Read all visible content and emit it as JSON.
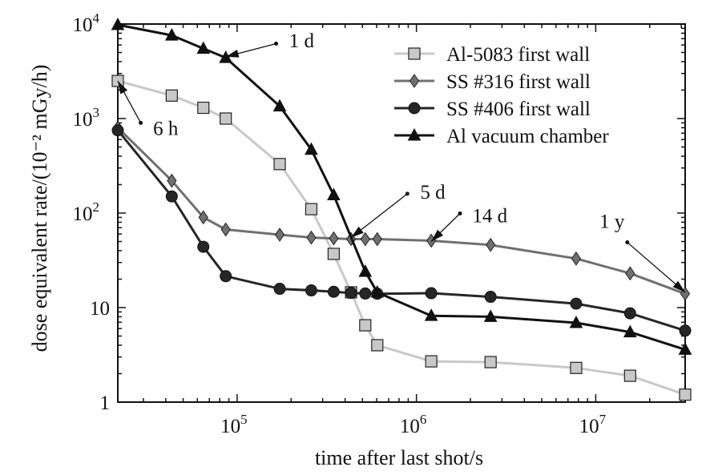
{
  "chart_data": {
    "type": "line",
    "title": "",
    "xlabel": "time after last shot/s",
    "ylabel": "dose equivalent rate/(10⁻² mGy/h)",
    "x_scale": "log",
    "y_scale": "log",
    "xlim": [
      21600,
      31536000
    ],
    "ylim": [
      1,
      10000
    ],
    "x_ticks": [
      {
        "value": 100000,
        "base": "10",
        "exp": "5"
      },
      {
        "value": 1000000,
        "base": "10",
        "exp": "6"
      },
      {
        "value": 10000000,
        "base": "10",
        "exp": "7"
      }
    ],
    "y_ticks": [
      {
        "value": 1,
        "base": "1",
        "exp": ""
      },
      {
        "value": 10,
        "base": "10",
        "exp": ""
      },
      {
        "value": 100,
        "base": "10",
        "exp": "2"
      },
      {
        "value": 1000,
        "base": "10",
        "exp": "3"
      },
      {
        "value": 10000,
        "base": "10",
        "exp": "4"
      }
    ],
    "grid": false,
    "legend_position": "top-right",
    "series": [
      {
        "name": "Al-5083 first wall",
        "color": "#c8c8c8",
        "marker": "square",
        "x": [
          21600,
          43200,
          64800,
          86400,
          172800,
          259200,
          345600,
          432000,
          518400,
          604800,
          1209600,
          2592000,
          7776000,
          15552000,
          31536000
        ],
        "y": [
          2500,
          1750,
          1300,
          1000,
          330,
          110,
          37,
          14.5,
          6.5,
          4,
          2.7,
          2.65,
          2.3,
          1.9,
          1.2
        ]
      },
      {
        "name": "SS #316 first wall",
        "color": "#707070",
        "marker": "diamond",
        "x": [
          21600,
          43200,
          64800,
          86400,
          172800,
          259200,
          345600,
          432000,
          518400,
          604800,
          1209600,
          2592000,
          7776000,
          15552000,
          31536000
        ],
        "y": [
          800,
          220,
          90,
          67,
          59,
          55,
          54,
          53,
          53,
          53,
          51,
          46,
          33,
          23,
          14
        ]
      },
      {
        "name": "SS #406 first wall",
        "color": "#262626",
        "marker": "circle",
        "x": [
          21600,
          43200,
          64800,
          86400,
          172800,
          259200,
          345600,
          432000,
          518400,
          604800,
          1209600,
          2592000,
          7776000,
          15552000,
          31536000
        ],
        "y": [
          750,
          150,
          44,
          21.5,
          15.8,
          15.2,
          14.7,
          14.3,
          14.1,
          14,
          14.2,
          13,
          11,
          8.7,
          5.7
        ]
      },
      {
        "name": "Al vacuum chamber",
        "color": "#111111",
        "marker": "triangle",
        "x": [
          21600,
          43200,
          64800,
          86400,
          172800,
          259200,
          345600,
          518400,
          604800,
          1209600,
          2592000,
          7776000,
          15552000,
          31536000
        ],
        "y": [
          9800,
          7600,
          5500,
          4400,
          1350,
          470,
          155,
          24,
          14.5,
          8.2,
          8,
          6.9,
          5.5,
          3.6
        ]
      }
    ],
    "annotations": [
      {
        "text": "6 h",
        "tail": [
          29000,
          900
        ],
        "head": [
          21600,
          2500
        ],
        "text_at": [
          34000,
          800
        ]
      },
      {
        "text": "1 d",
        "tail": [
          165000,
          6200
        ],
        "head": [
          86400,
          4500
        ],
        "text_at": [
          195000,
          6800
        ]
      },
      {
        "text": "5 d",
        "tail": [
          890000,
          160
        ],
        "head": [
          432000,
          55
        ],
        "text_at": [
          1050000,
          170
        ]
      },
      {
        "text": "14 d",
        "tail": [
          1750000,
          99
        ],
        "head": [
          1209600,
          50
        ],
        "text_at": [
          2050000,
          95
        ]
      },
      {
        "text": "1 y",
        "tail": [
          15000000,
          49
        ],
        "head": [
          31536000,
          14.5
        ],
        "text_at": [
          10500000,
          83
        ]
      }
    ]
  }
}
